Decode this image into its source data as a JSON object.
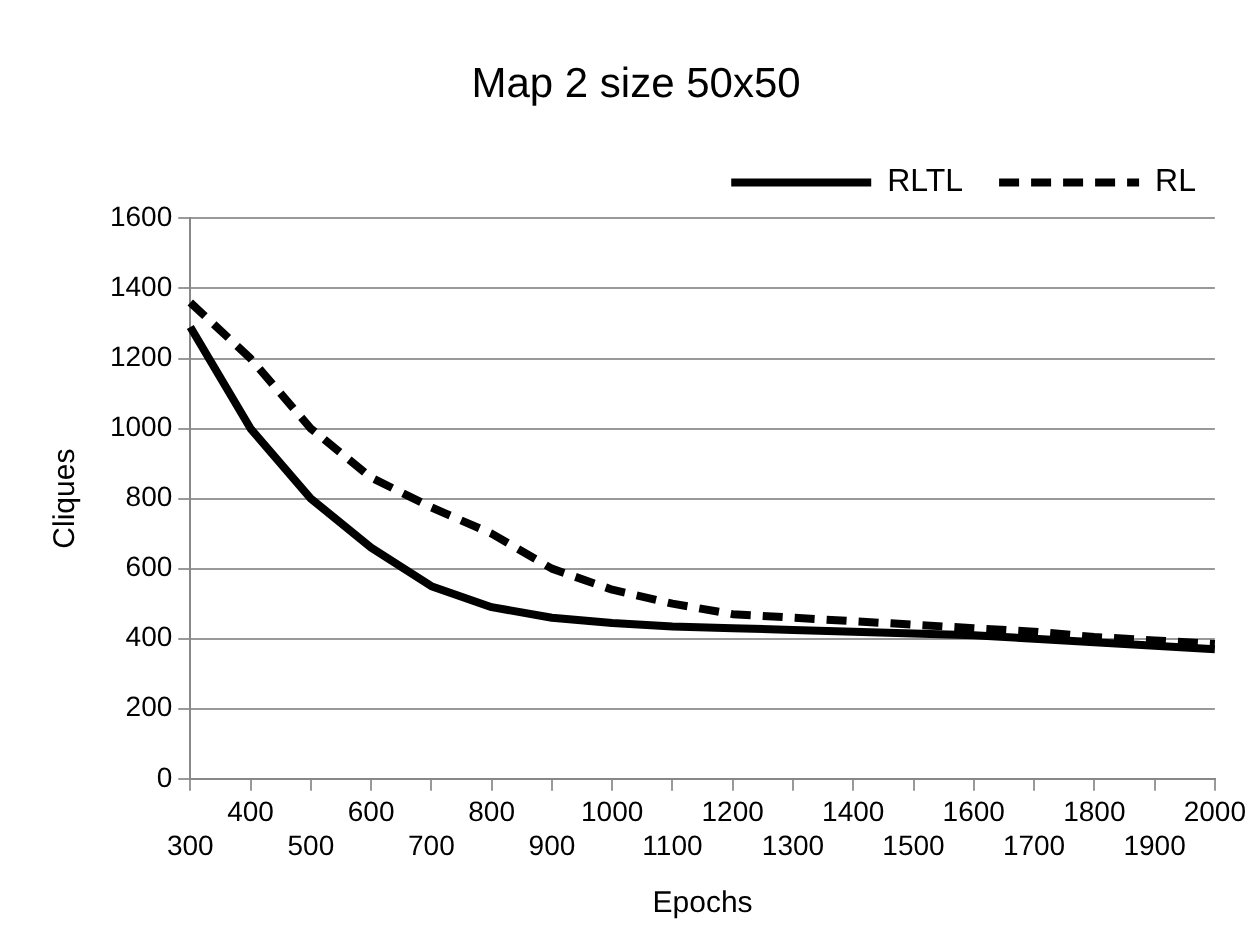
{
  "chart_data": {
    "type": "line",
    "title": "Map 2 size 50x50",
    "xlabel": "Epochs",
    "ylabel": "Cliques",
    "categories": [
      "300",
      "400",
      "500",
      "600",
      "700",
      "800",
      "900",
      "1000",
      "1100",
      "1200",
      "1300",
      "1400",
      "1500",
      "1600",
      "1700",
      "1800",
      "1900",
      "2000"
    ],
    "series": [
      {
        "name": "RLTL",
        "color": "#000000",
        "line_style": "solid",
        "values": [
          1290,
          1000,
          800,
          660,
          550,
          490,
          460,
          445,
          435,
          430,
          425,
          420,
          415,
          410,
          400,
          390,
          380,
          370
        ]
      },
      {
        "name": "RL",
        "color": "#000000",
        "line_style": "dashed",
        "values": [
          1360,
          1200,
          1000,
          860,
          775,
          700,
          600,
          540,
          500,
          470,
          460,
          450,
          440,
          430,
          420,
          405,
          395,
          385
        ]
      }
    ],
    "ylim": [
      0,
      1600
    ],
    "yticks": [
      0,
      200,
      400,
      600,
      800,
      1000,
      1200,
      1400,
      1600
    ],
    "grid": "y",
    "legend": "top right",
    "marker": "none"
  }
}
